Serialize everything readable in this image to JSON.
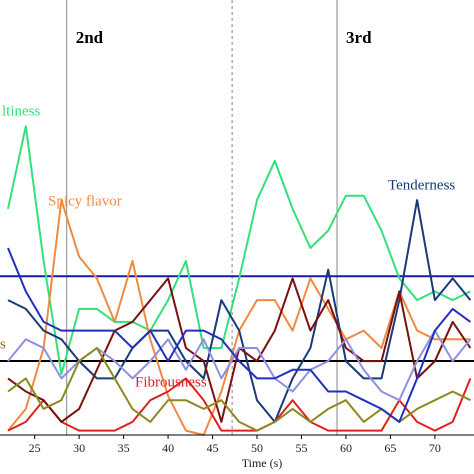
{
  "chart_data": {
    "type": "line",
    "x_label": "Time (s)",
    "x": [
      22,
      24,
      26,
      28,
      30,
      32,
      34,
      36,
      38,
      40,
      42,
      44,
      46,
      48,
      50,
      52,
      54,
      56,
      58,
      60,
      62,
      64,
      66,
      68,
      70,
      72,
      74
    ],
    "xlim": [
      21.1,
      74.4
    ],
    "xticks": [
      25,
      30,
      35,
      40,
      45,
      50,
      55,
      60,
      65,
      70
    ],
    "ylim": [
      0,
      1
    ],
    "series": [
      {
        "color": "#33e07a",
        "values": [
          0.52,
          0.71,
          0.4,
          0.14,
          0.29,
          0.29,
          0.26,
          0.26,
          0.24,
          0.31,
          0.4,
          0.2,
          0.2,
          0.36,
          0.54,
          0.63,
          0.52,
          0.43,
          0.47,
          0.55,
          0.55,
          0.47,
          0.36,
          0.31,
          0.33,
          0.31,
          0.33
        ]
      },
      {
        "color": "#f08a40",
        "values": [
          0.01,
          0.06,
          0.2,
          0.54,
          0.41,
          0.36,
          0.26,
          0.4,
          0.22,
          0.09,
          0.01,
          0,
          0.1,
          0.24,
          0.31,
          0.31,
          0.24,
          0.36,
          0.29,
          0.22,
          0.24,
          0.2,
          0.33,
          0.24,
          0.22,
          0.22,
          0.22
        ]
      },
      {
        "color": "#1a3a7a",
        "values": [
          0.31,
          0.29,
          0.24,
          0.22,
          0.17,
          0.13,
          0.13,
          0.2,
          0.24,
          0.24,
          0.17,
          0.13,
          0.31,
          0.24,
          0.08,
          0.03,
          0.13,
          0.2,
          0.38,
          0.17,
          0.13,
          0.13,
          0.31,
          0.54,
          0.31,
          0.36,
          0.31
        ]
      },
      {
        "color": "#e02020",
        "values": [
          0.01,
          0.03,
          0.08,
          0.03,
          0.01,
          0.01,
          0.01,
          0.03,
          0.08,
          0.1,
          0.13,
          0.08,
          0.01,
          0.01,
          0.01,
          0.03,
          0.08,
          0.03,
          0.01,
          0.01,
          0.01,
          0.01,
          0.08,
          0.03,
          0.01,
          0.03,
          0.13
        ]
      },
      {
        "color": "#7a1010",
        "values": [
          0.13,
          0.1,
          0.08,
          0.03,
          0.06,
          0.15,
          0.24,
          0.26,
          0.31,
          0.36,
          0.2,
          0.17,
          0.03,
          0.2,
          0.17,
          0.24,
          0.36,
          0.24,
          0.31,
          0.2,
          0.17,
          0.17,
          0.33,
          0.13,
          0.17,
          0.26,
          0.2
        ]
      },
      {
        "color": "#9090e0",
        "values": [
          0.17,
          0.22,
          0.2,
          0.13,
          0.17,
          0.2,
          0.17,
          0.13,
          0.17,
          0.22,
          0.15,
          0.22,
          0.13,
          0.2,
          0.2,
          0.13,
          0.1,
          0.15,
          0.17,
          0.22,
          0.15,
          0.1,
          0.08,
          0.17,
          0.24,
          0.17,
          0.22
        ]
      },
      {
        "color": "#8a8a20",
        "values": [
          0.1,
          0.13,
          0.06,
          0.08,
          0.17,
          0.2,
          0.13,
          0.06,
          0.03,
          0.08,
          0.08,
          0.06,
          0.08,
          0.03,
          0.01,
          0.03,
          0.06,
          0.03,
          0.06,
          0.08,
          0.03,
          0.06,
          0.03,
          0.06,
          0.08,
          0.1,
          0.08
        ]
      },
      {
        "color": "#2030c0",
        "values": [
          0.43,
          0.33,
          0.26,
          0.24,
          0.24,
          0.24,
          0.24,
          0.2,
          0.24,
          0.17,
          0.24,
          0.24,
          0.22,
          0.17,
          0.13,
          0.13,
          0.15,
          0.15,
          0.1,
          0.1,
          0.08,
          0.06,
          0.03,
          0.13,
          0.24,
          0.29,
          0.26
        ]
      }
    ],
    "reference_lines": [
      {
        "value": 0.365,
        "color": "#1a1aa8"
      },
      {
        "value": 0.17,
        "color": "#000000"
      }
    ],
    "phase_lines": [
      {
        "x": 28.6,
        "style": "solid"
      },
      {
        "x": 47.2,
        "style": "dashed"
      },
      {
        "x": 59,
        "style": "solid"
      }
    ],
    "phase_labels": [
      "2nd",
      "3rd"
    ],
    "annotations": [
      {
        "text": "ltiness",
        "color": "#33e07a"
      },
      {
        "text": "Spicy flavor",
        "color": "#f08a40"
      },
      {
        "text": "Tenderness",
        "color": "#1a3a7a"
      },
      {
        "text": "Fibrousness",
        "color": "#e02020"
      },
      {
        "text": "s",
        "color": "#8a6a20"
      }
    ]
  }
}
